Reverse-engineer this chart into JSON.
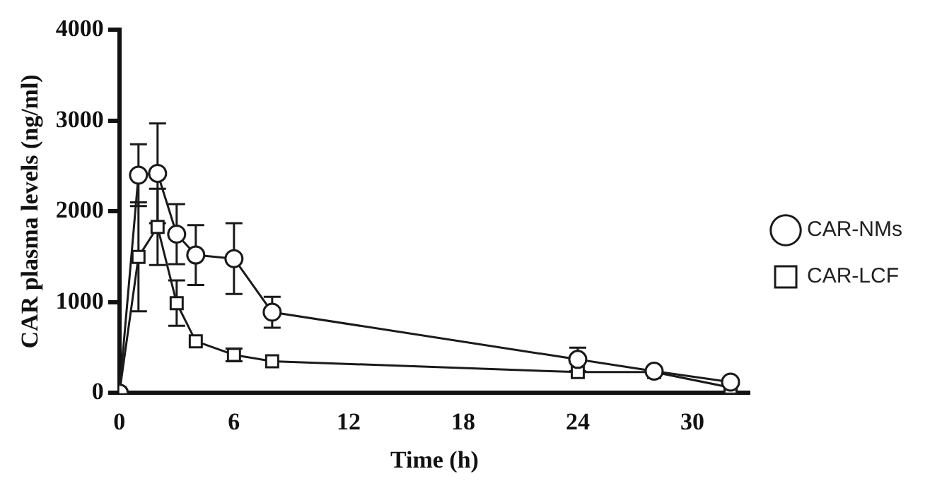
{
  "chart_data": {
    "type": "line",
    "xlabel": "Time (h)",
    "ylabel": "CAR plasma levels (ng/ml)",
    "x": [
      0,
      1,
      2,
      3,
      4,
      6,
      8,
      24,
      28,
      32
    ],
    "series": [
      {
        "name": "CAR-NMs",
        "color": "#1a1a1a",
        "marker": "circle",
        "values": [
          0,
          2400,
          2420,
          1750,
          1520,
          1480,
          890,
          370,
          240,
          120
        ],
        "errors": [
          null,
          340,
          550,
          330,
          330,
          390,
          170,
          130,
          null,
          null
        ]
      },
      {
        "name": "CAR-LCF",
        "color": "#1a1a1a",
        "marker": "square",
        "values": [
          0,
          1500,
          1830,
          990,
          570,
          420,
          350,
          230,
          230,
          60
        ],
        "errors": [
          null,
          600,
          420,
          250,
          null,
          70,
          null,
          null,
          null,
          null
        ]
      }
    ],
    "xlim": [
      0,
      33
    ],
    "xticks": [
      0,
      6,
      12,
      18,
      24,
      30
    ],
    "ylim": [
      0,
      4000
    ],
    "yticks": [
      0,
      1000,
      2000,
      3000,
      4000
    ],
    "grid": false,
    "legend": "right",
    "line_style": "solid"
  }
}
